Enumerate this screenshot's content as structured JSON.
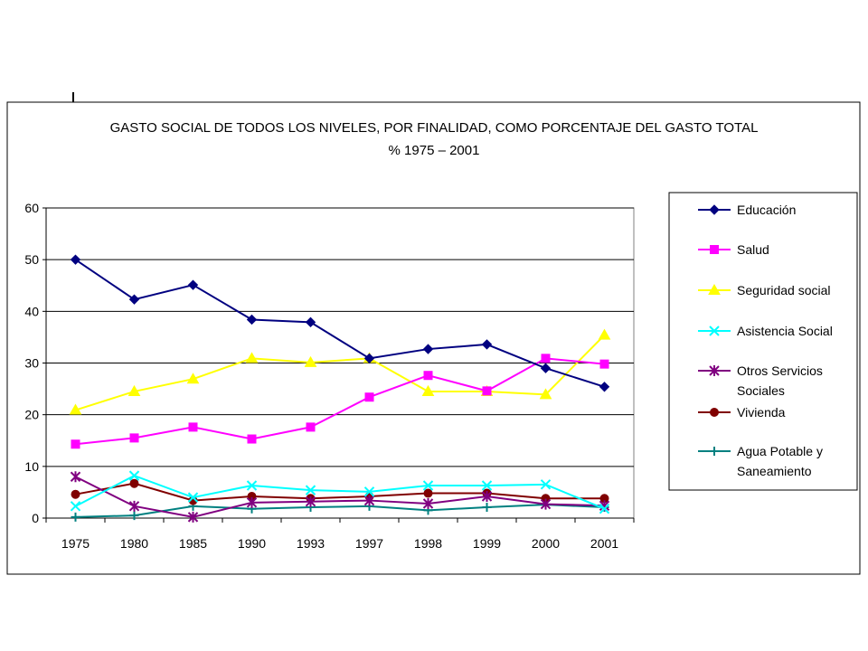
{
  "chart_data": {
    "type": "line",
    "title": "GASTO SOCIAL DE TODOS LOS NIVELES, POR FINALIDAD,  COMO PORCENTAJE DEL GASTO TOTAL",
    "subtitle": "% 1975 – 2001",
    "xlabel": "",
    "ylabel": "",
    "categories": [
      "1975",
      "1980",
      "1985",
      "1990",
      "1993",
      "1997",
      "1998",
      "1999",
      "2000",
      "2001"
    ],
    "ylim": [
      0,
      60
    ],
    "yticks": [
      0,
      10,
      20,
      30,
      40,
      50,
      60
    ],
    "grid": true,
    "legend_position": "right",
    "series": [
      {
        "name": "Educación",
        "color": "#000080",
        "marker": "diamond",
        "values": [
          50,
          42.3,
          45.1,
          38.4,
          37.9,
          30.9,
          32.7,
          33.6,
          29,
          25.4
        ]
      },
      {
        "name": "Salud",
        "color": "#FF00FF",
        "marker": "square",
        "values": [
          14.3,
          15.5,
          17.6,
          15.3,
          17.6,
          23.4,
          27.6,
          24.6,
          30.9,
          29.8
        ]
      },
      {
        "name": "Seguridad social",
        "color": "#FFFF00",
        "marker": "triangle",
        "values": [
          20.9,
          24.5,
          26.9,
          30.9,
          30.1,
          30.9,
          24.5,
          24.5,
          23.9,
          35.4
        ]
      },
      {
        "name": "Asistencia Social",
        "color": "#00FFFF",
        "marker": "x",
        "values": [
          2.3,
          8.2,
          4,
          6.3,
          5.4,
          5.1,
          6.3,
          6.3,
          6.5,
          1.8
        ]
      },
      {
        "name": "Otros Servicios Sociales",
        "label_lines": [
          "Otros Servicios",
          "Sociales"
        ],
        "color": "#800080",
        "marker": "star",
        "values": [
          8,
          2.3,
          0.2,
          3,
          3.2,
          3.4,
          2.8,
          4.2,
          2.7,
          2.4
        ]
      },
      {
        "name": "Vivienda",
        "color": "#800000",
        "marker": "circle",
        "values": [
          4.6,
          6.7,
          3.4,
          4.2,
          3.8,
          4.2,
          4.8,
          4.8,
          3.8,
          3.8
        ]
      },
      {
        "name": "Agua Potable y Saneamiento",
        "label_lines": [
          "Agua Potable y",
          "Saneamiento"
        ],
        "color": "#008080",
        "marker": "plus",
        "values": [
          0.2,
          0.5,
          2.3,
          1.8,
          2.1,
          2.3,
          1.5,
          2.1,
          2.6,
          2.1
        ]
      }
    ]
  }
}
